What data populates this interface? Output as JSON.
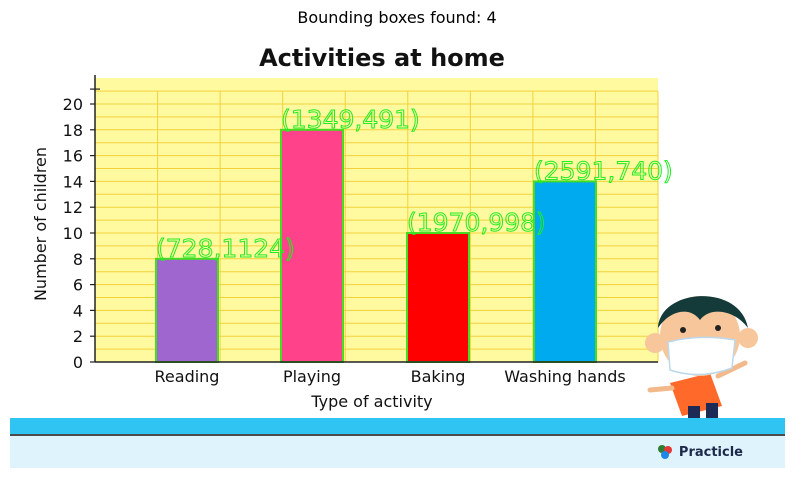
{
  "banner": "Bounding boxes found: 4",
  "chart_data": {
    "type": "bar",
    "title": "Activities at home",
    "xlabel": "Type of activity",
    "ylabel": "Number of children",
    "categories": [
      "Reading",
      "Playing",
      "Baking",
      "Washing hands"
    ],
    "values": [
      8,
      18,
      10,
      14
    ],
    "colors": [
      "#a066d0",
      "#ff4289",
      "#ff0000",
      "#00aaee"
    ],
    "yticks": [
      "0",
      "2",
      "4",
      "6",
      "8",
      "10",
      "12",
      "14",
      "16",
      "18",
      "20"
    ],
    "ylim": [
      0,
      21
    ],
    "grid": true,
    "background": "#fff9a0",
    "bar_outline": "#44dd22",
    "annotations": [
      "(728,1124)",
      "(1349,491)",
      "(1970,998)",
      "(2591,740)"
    ]
  },
  "brand": {
    "name": "Practicle"
  }
}
